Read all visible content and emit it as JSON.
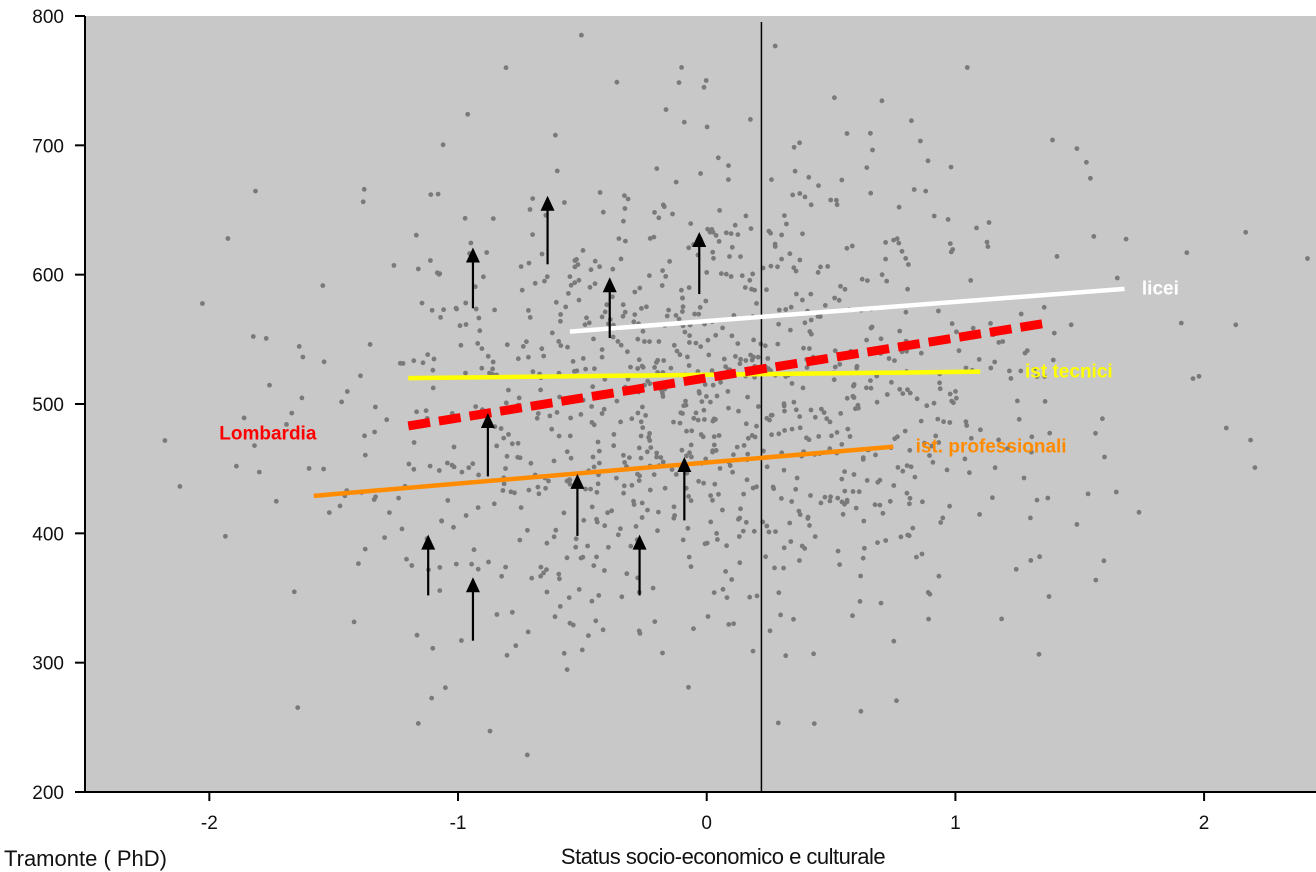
{
  "chart_data": {
    "type": "scatter",
    "title": "",
    "xlabel": "Status socio-economico e culturale",
    "ylabel": "",
    "xlim": [
      -2.5,
      2.45
    ],
    "ylim": [
      200,
      800
    ],
    "x_ticks": [
      -2,
      -1,
      0,
      1,
      2
    ],
    "y_ticks": [
      200,
      300,
      400,
      500,
      600,
      700,
      800
    ],
    "grid": false,
    "background_color": "#c8c8c8",
    "point_color": "#7a7a7a",
    "reference_line_x": 0.22,
    "scatter_cloud": {
      "x_mean": 0.0,
      "x_sd": 0.75,
      "y_mean": 505,
      "y_sd": 95,
      "n_points": 1100
    },
    "lines": [
      {
        "name": "licei",
        "color": "#ffffff",
        "style": "solid",
        "x": [
          -0.55,
          1.68
        ],
        "y": [
          556,
          589
        ]
      },
      {
        "name": "ist tecnici",
        "color": "#ffff00",
        "style": "solid",
        "x": [
          -1.2,
          1.1
        ],
        "y": [
          520,
          525
        ]
      },
      {
        "name": "Lombardia",
        "color": "#ff0000",
        "style": "dashed",
        "x": [
          -1.2,
          1.35
        ],
        "y": [
          483,
          562
        ]
      },
      {
        "name": "ist. professionali",
        "color": "#ff8c00",
        "style": "solid",
        "x": [
          -1.58,
          0.75
        ],
        "y": [
          429,
          467
        ]
      }
    ],
    "annotations": [
      {
        "text": "licei",
        "x": 1.75,
        "y": 590,
        "color": "#ffffff"
      },
      {
        "text": "ist tecnici",
        "x": 1.28,
        "y": 526,
        "color": "#ffff00"
      },
      {
        "text": "Lombardia",
        "x": -1.96,
        "y": 478,
        "color": "#ff0000"
      },
      {
        "text": "ist. professionali",
        "x": 0.84,
        "y": 468,
        "color": "#ff8c00"
      }
    ],
    "arrows": [
      {
        "x": -0.64,
        "y_from": 608,
        "y_to": 661
      },
      {
        "x": -0.94,
        "y_from": 574,
        "y_to": 621
      },
      {
        "x": -0.39,
        "y_from": 551,
        "y_to": 598
      },
      {
        "x": -0.03,
        "y_from": 585,
        "y_to": 633
      },
      {
        "x": -0.88,
        "y_from": 444,
        "y_to": 493
      },
      {
        "x": -0.52,
        "y_from": 398,
        "y_to": 446
      },
      {
        "x": -0.09,
        "y_from": 410,
        "y_to": 459
      },
      {
        "x": -1.12,
        "y_from": 352,
        "y_to": 399
      },
      {
        "x": -0.27,
        "y_from": 352,
        "y_to": 399
      },
      {
        "x": -0.94,
        "y_from": 317,
        "y_to": 366
      }
    ]
  },
  "credit": "Tramonte ( PhD)"
}
